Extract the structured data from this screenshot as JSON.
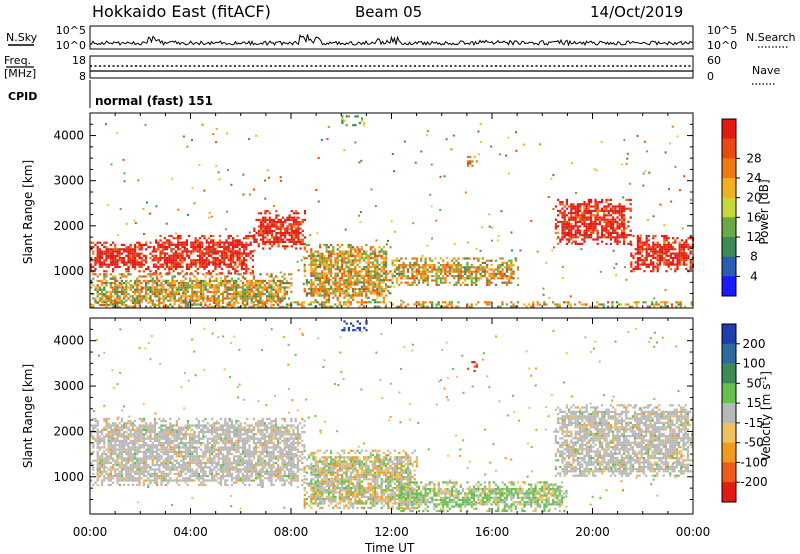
{
  "header": {
    "radar": "Hokkaido East (fitACF)",
    "beam": "Beam 05",
    "date": "14/Oct/2019"
  },
  "top_panels": {
    "nsky_label": "N.Sky",
    "nsky_ticks": [
      "10^5",
      "10^0"
    ],
    "nsearch_label": "N.Search",
    "nsearch_ticks": [
      "10^5",
      "10^0"
    ],
    "freq_label": "Freq.",
    "freq_unit": "[MHz]",
    "freq_ticks": [
      "18",
      "8"
    ],
    "nave_label": "Nave",
    "nave_ticks": [
      "60",
      "0"
    ],
    "cpid_label": "CPID",
    "cpid_text": "normal (fast) 151"
  },
  "colors": {
    "power": [
      "#1a1aff",
      "#2a5cb0",
      "#3c8a55",
      "#6aaa44",
      "#c8d83a",
      "#f0b020",
      "#f07a10",
      "#e84a10",
      "#e21b14"
    ],
    "velocity": [
      "#1f3db0",
      "#2d6aa0",
      "#3c8a55",
      "#66c050",
      "#b8b8b8",
      "#f0c060",
      "#f29a1e",
      "#ef5a18",
      "#e21b14"
    ],
    "ground_scatter": "#b8b8b8"
  },
  "chart_data": [
    {
      "type": "heatmap",
      "title": "",
      "ylabel": "Slant Range [km]",
      "xlabel": "Time UT",
      "x_ticks": [
        "00:00",
        "04:00",
        "08:00",
        "12:00",
        "16:00",
        "20:00",
        "00:00"
      ],
      "xlim": [
        0,
        24
      ],
      "y_ticks": [
        1000,
        2000,
        3000,
        4000
      ],
      "ylim": [
        180,
        4500
      ],
      "colorbar": {
        "label": "Power [dB]",
        "ticks": [
          "4",
          "8",
          "12",
          "16",
          "20",
          "24",
          "28"
        ]
      },
      "regions": [
        {
          "t": [
            0.0,
            2.5
          ],
          "range": [
            1000,
            1650
          ],
          "value": "high"
        },
        {
          "t": [
            2.5,
            6.5
          ],
          "range": [
            950,
            1800
          ],
          "value": "high"
        },
        {
          "t": [
            6.5,
            8.6
          ],
          "range": [
            1500,
            2350
          ],
          "value": "high"
        },
        {
          "t": [
            0.0,
            8.0
          ],
          "range": [
            200,
            950
          ],
          "value": "medium"
        },
        {
          "t": [
            8.5,
            12.0
          ],
          "range": [
            300,
            1600
          ],
          "value": "medium"
        },
        {
          "t": [
            12.0,
            17.0
          ],
          "range": [
            700,
            1300
          ],
          "value": "medium"
        },
        {
          "t": [
            18.5,
            21.5
          ],
          "range": [
            1600,
            2600
          ],
          "value": "high"
        },
        {
          "t": [
            21.5,
            24.0
          ],
          "range": [
            1000,
            1800
          ],
          "value": "high"
        },
        {
          "t": [
            10.0,
            11.0
          ],
          "range": [
            4250,
            4450
          ],
          "value": "low"
        },
        {
          "t": [
            15.0,
            15.4
          ],
          "range": [
            3350,
            3550
          ],
          "value": "medium"
        },
        {
          "t": [
            0.0,
            24.0
          ],
          "range": [
            200,
            330
          ],
          "value": "medium"
        }
      ]
    },
    {
      "type": "heatmap",
      "title": "",
      "ylabel": "Slant Range [km]",
      "xlabel": "Time UT",
      "x_ticks": [
        "00:00",
        "04:00",
        "08:00",
        "12:00",
        "16:00",
        "20:00",
        "00:00"
      ],
      "xlim": [
        0,
        24
      ],
      "y_ticks": [
        1000,
        2000,
        3000,
        4000
      ],
      "ylim": [
        180,
        4500
      ],
      "colorbar": {
        "label": "Velocity [m s^-1]",
        "ticks": [
          "200",
          "100",
          "50",
          "15",
          "-15",
          "-50",
          "-100",
          "-200"
        ]
      },
      "regions": [
        {
          "t": [
            0.0,
            8.5
          ],
          "range": [
            800,
            2300
          ],
          "value": "ground"
        },
        {
          "t": [
            18.5,
            24.0
          ],
          "range": [
            1000,
            2600
          ],
          "value": "ground"
        },
        {
          "t": [
            8.5,
            13.0
          ],
          "range": [
            300,
            1600
          ],
          "value": "mixed"
        },
        {
          "t": [
            12.0,
            19.0
          ],
          "range": [
            250,
            900
          ],
          "value": "positive"
        },
        {
          "t": [
            10.0,
            11.0
          ],
          "range": [
            4250,
            4450
          ],
          "value": "strong-positive"
        },
        {
          "t": [
            15.0,
            15.4
          ],
          "range": [
            3350,
            3550
          ],
          "value": "strong-negative"
        }
      ]
    }
  ]
}
